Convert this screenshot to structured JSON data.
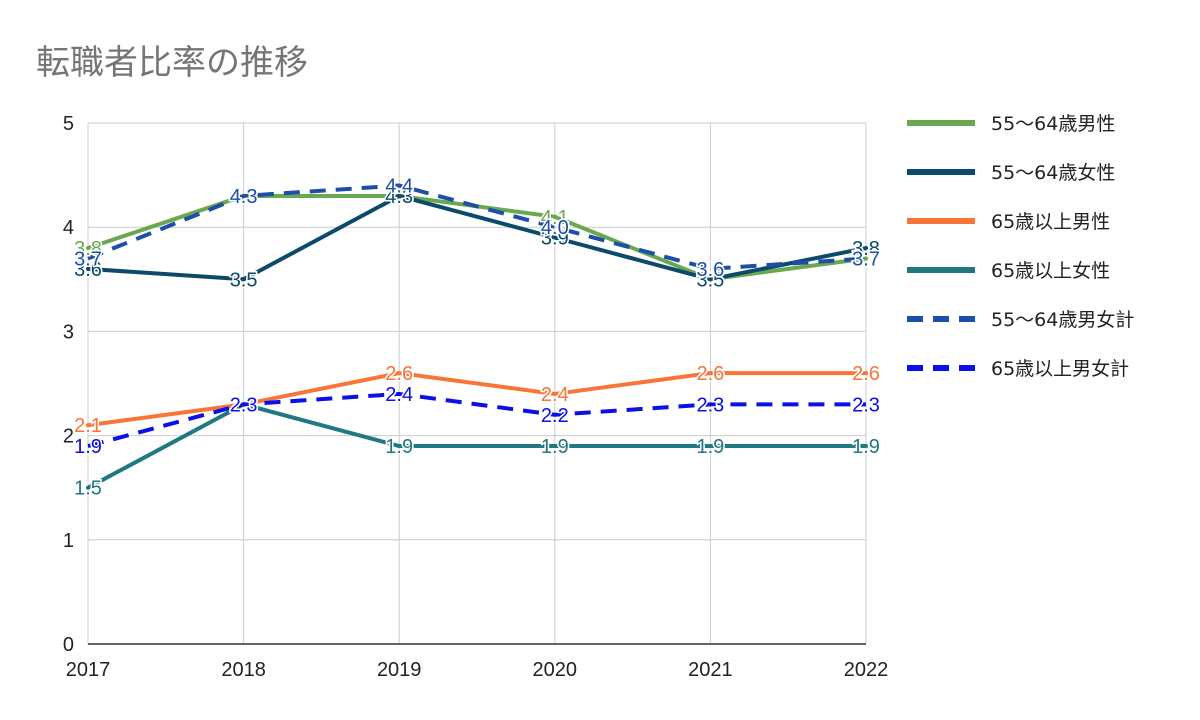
{
  "chart_data": {
    "type": "line",
    "title": "転職者比率の推移",
    "xlabel": "",
    "ylabel": "",
    "categories": [
      "2017",
      "2018",
      "2019",
      "2020",
      "2021",
      "2022"
    ],
    "ylim": [
      0,
      5
    ],
    "yticks": [
      0,
      1,
      2,
      3,
      4,
      5
    ],
    "grid": true,
    "legend_position": "right",
    "data_labels": true,
    "series": [
      {
        "name": "55〜64歳男性",
        "values": [
          3.8,
          4.3,
          4.3,
          4.1,
          3.5,
          3.7
        ],
        "color": "#6aa84f",
        "dash": false
      },
      {
        "name": "55〜64歳女性",
        "values": [
          3.6,
          3.5,
          4.3,
          3.9,
          3.5,
          3.8
        ],
        "color": "#0b4a6a",
        "dash": false
      },
      {
        "name": "65歳以上男性",
        "values": [
          2.1,
          2.3,
          2.6,
          2.4,
          2.6,
          2.6
        ],
        "color": "#f87438",
        "dash": false
      },
      {
        "name": "65歳以上女性",
        "values": [
          1.5,
          2.3,
          1.9,
          1.9,
          1.9,
          1.9
        ],
        "color": "#217782",
        "dash": false
      },
      {
        "name": "55〜64歳男女計",
        "values": [
          3.7,
          4.3,
          4.4,
          4.0,
          3.6,
          3.7
        ],
        "color": "#1c4eaa",
        "dash": true
      },
      {
        "name": "65歳以上男女計",
        "values": [
          1.9,
          2.3,
          2.4,
          2.2,
          2.3,
          2.3
        ],
        "color": "#0a10e6",
        "dash": true
      }
    ]
  }
}
